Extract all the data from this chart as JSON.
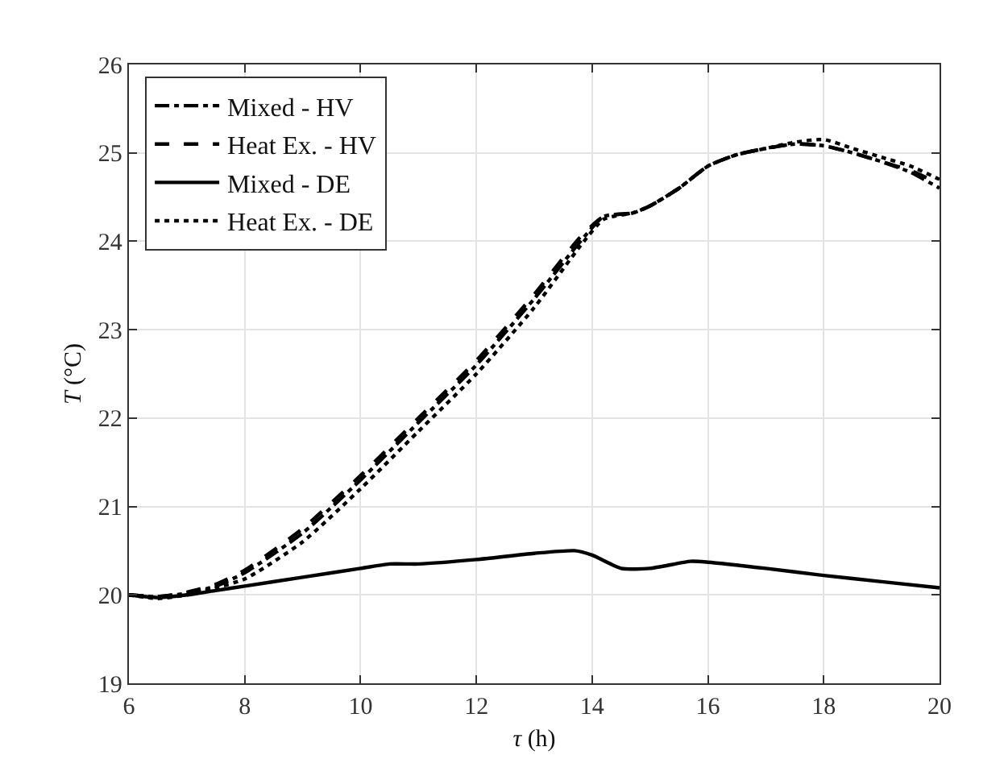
{
  "chart_data": {
    "type": "line",
    "xlabel": "τ (h)",
    "ylabel": "T (°C)",
    "xlim": [
      6,
      20
    ],
    "xticks": [
      6,
      8,
      10,
      12,
      14,
      16,
      18,
      20
    ],
    "ylim": [
      19,
      26
    ],
    "yticks": [
      19,
      20,
      21,
      22,
      23,
      24,
      25,
      26
    ],
    "grid": true,
    "legend": "top left",
    "series": [
      {
        "name": "Mixed - HV",
        "color": "#000000",
        "line_style": "dashdot",
        "x": [
          6,
          6.5,
          7,
          7.5,
          8,
          9,
          10,
          11,
          12,
          13,
          13.8,
          14.2,
          14.7,
          15,
          15.5,
          16,
          16.5,
          17,
          17.5,
          18,
          18.5,
          19,
          19.5,
          20
        ],
        "values": [
          20.0,
          19.98,
          20.02,
          20.1,
          20.25,
          20.7,
          21.3,
          21.95,
          22.6,
          23.35,
          24.0,
          24.28,
          24.32,
          24.4,
          24.6,
          24.85,
          24.98,
          25.05,
          25.1,
          25.08,
          25.0,
          24.9,
          24.78,
          24.6
        ]
      },
      {
        "name": "Heat Ex. - HV",
        "color": "#000000",
        "line_style": "dashed",
        "x": [
          6,
          6.5,
          7,
          7.5,
          8,
          9,
          10,
          11,
          12,
          13,
          13.8,
          14.2,
          14.7,
          15,
          15.5,
          16,
          16.5,
          17,
          17.5,
          18,
          18.5,
          19,
          19.5,
          20
        ],
        "values": [
          20.0,
          19.98,
          20.03,
          20.12,
          20.28,
          20.75,
          21.35,
          22.0,
          22.65,
          23.4,
          24.05,
          24.28,
          24.32,
          24.4,
          24.6,
          24.85,
          24.98,
          25.05,
          25.1,
          25.08,
          25.0,
          24.9,
          24.8,
          24.65
        ]
      },
      {
        "name": "Mixed - DE",
        "color": "#000000",
        "line_style": "solid",
        "x": [
          6,
          6.5,
          7,
          7.5,
          8,
          9,
          10,
          10.5,
          11,
          12,
          13,
          13.7,
          14,
          14.5,
          15,
          15.7,
          16,
          17,
          18,
          19,
          20
        ],
        "values": [
          20.0,
          19.97,
          20.0,
          20.05,
          20.1,
          20.2,
          20.3,
          20.35,
          20.35,
          20.4,
          20.47,
          20.5,
          20.45,
          20.3,
          20.3,
          20.38,
          20.37,
          20.3,
          20.22,
          20.15,
          20.08
        ]
      },
      {
        "name": "Heat Ex. - DE",
        "color": "#000000",
        "line_style": "dotted",
        "x": [
          6,
          6.5,
          7,
          7.5,
          8,
          9,
          10,
          11,
          12,
          13,
          13.8,
          14.2,
          14.7,
          15,
          15.5,
          16,
          16.5,
          17,
          17.5,
          18,
          18.5,
          19,
          19.5,
          20
        ],
        "values": [
          20.0,
          19.96,
          20.0,
          20.08,
          20.18,
          20.6,
          21.2,
          21.85,
          22.5,
          23.25,
          23.95,
          24.25,
          24.32,
          24.4,
          24.6,
          24.85,
          24.98,
          25.05,
          25.12,
          25.15,
          25.05,
          24.95,
          24.85,
          24.7
        ]
      }
    ]
  }
}
